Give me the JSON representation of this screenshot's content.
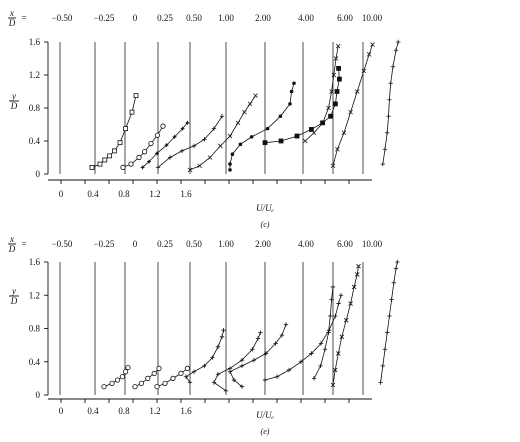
{
  "figure": {
    "top": {
      "caption": "(c)",
      "station_label_num": "x",
      "station_label_den": "D",
      "eq": "=",
      "stations": [
        "−0.50",
        "−0.25",
        "0",
        "0.25",
        "0.50",
        "1.00",
        "2.00",
        "4.00",
        "6.00",
        "10.00"
      ],
      "y_label_num": "y",
      "y_label_den": "D",
      "y_ticks": [
        "1.6",
        "1.2",
        "0.8",
        "0.4",
        "0"
      ],
      "x_ticks": [
        "0",
        "0.4",
        "0.8",
        "1.2",
        "1.6"
      ],
      "x_label": "U/Uₑ"
    },
    "bottom": {
      "caption": "(e)",
      "station_label_num": "x",
      "station_label_den": "D",
      "eq": "=",
      "stations": [
        "−0.50",
        "−0.25",
        "0",
        "0.25",
        "0.50",
        "1.00",
        "2.00",
        "4.00",
        "6.00",
        "10.00"
      ],
      "y_label_num": "y",
      "y_label_den": "D",
      "y_ticks": [
        "1.6",
        "1.2",
        "0.8",
        "0.4",
        "0"
      ],
      "x_ticks": [
        "0",
        "0.4",
        "0.8",
        "1.2",
        "1.6"
      ],
      "x_label": "U/Uₑ"
    }
  },
  "chart_data": [
    {
      "type": "line",
      "title": "",
      "xlabel": "U/Ue",
      "ylabel": "y/D",
      "ylim": [
        0,
        1.6
      ],
      "x_scale": "velocity profiles, each offset to its station baseline",
      "series": [
        {
          "name": "x/D = −0.50",
          "marker": "square",
          "points": [
            [
              0.4,
              0.08
            ],
            [
              0.5,
              0.12
            ],
            [
              0.56,
              0.17
            ],
            [
              0.62,
              0.22
            ],
            [
              0.68,
              0.28
            ],
            [
              0.75,
              0.38
            ],
            [
              0.82,
              0.55
            ],
            [
              0.9,
              0.75
            ],
            [
              0.95,
              0.95
            ]
          ]
        },
        {
          "name": "x/D = −0.25",
          "marker": "circle",
          "points": [
            [
              0.35,
              0.08
            ],
            [
              0.45,
              0.12
            ],
            [
              0.55,
              0.2
            ],
            [
              0.62,
              0.27
            ],
            [
              0.7,
              0.37
            ],
            [
              0.78,
              0.47
            ],
            [
              0.85,
              0.58
            ]
          ]
        },
        {
          "name": "x/D = 0",
          "marker": "cross",
          "points": [
            [
              0.22,
              0.08
            ],
            [
              0.3,
              0.15
            ],
            [
              0.4,
              0.25
            ],
            [
              0.52,
              0.35
            ],
            [
              0.62,
              0.45
            ],
            [
              0.72,
              0.55
            ],
            [
              0.78,
              0.62
            ]
          ]
        },
        {
          "name": "x/D = 0.25",
          "marker": "plus",
          "points": [
            [
              0.0,
              0.08
            ],
            [
              0.15,
              0.2
            ],
            [
              0.3,
              0.28
            ],
            [
              0.45,
              0.34
            ],
            [
              0.58,
              0.42
            ],
            [
              0.7,
              0.55
            ],
            [
              0.8,
              0.7
            ]
          ]
        },
        {
          "name": "x/D = 0.50",
          "marker": "x",
          "points": [
            [
              0.0,
              0.05
            ],
            [
              0.12,
              0.1
            ],
            [
              0.25,
              0.2
            ],
            [
              0.38,
              0.34
            ],
            [
              0.5,
              0.46
            ],
            [
              0.6,
              0.62
            ],
            [
              0.68,
              0.75
            ],
            [
              0.75,
              0.85
            ],
            [
              0.82,
              0.95
            ]
          ]
        },
        {
          "name": "x/D = 1.00",
          "marker": "dot",
          "points": [
            [
              0.05,
              0.05
            ],
            [
              0.05,
              0.12
            ],
            [
              0.08,
              0.24
            ],
            [
              0.18,
              0.36
            ],
            [
              0.32,
              0.45
            ],
            [
              0.52,
              0.55
            ],
            [
              0.68,
              0.7
            ],
            [
              0.8,
              0.85
            ],
            [
              0.82,
              1.0
            ],
            [
              0.85,
              1.1
            ]
          ]
        },
        {
          "name": "x/D = 2.00",
          "marker": "square-filled",
          "points": [
            [
              0.0,
              0.38
            ],
            [
              0.2,
              0.4
            ],
            [
              0.4,
              0.46
            ],
            [
              0.58,
              0.54
            ],
            [
              0.72,
              0.62
            ],
            [
              0.82,
              0.7
            ],
            [
              0.88,
              0.85
            ],
            [
              0.9,
              1.0
            ],
            [
              0.93,
              1.15
            ],
            [
              0.92,
              1.28
            ]
          ]
        },
        {
          "name": "x/D = 4.00",
          "marker": "x",
          "points": [
            [
              0.05,
              0.4
            ],
            [
              0.25,
              0.5
            ],
            [
              0.45,
              0.62
            ],
            [
              0.58,
              0.8
            ],
            [
              0.65,
              1.0
            ],
            [
              0.7,
              1.2
            ],
            [
              0.75,
              1.4
            ],
            [
              0.8,
              1.55
            ]
          ]
        },
        {
          "name": "x/D = 6.00",
          "marker": "x",
          "points": [
            [
              0.0,
              0.1
            ],
            [
              0.1,
              0.3
            ],
            [
              0.25,
              0.5
            ],
            [
              0.4,
              0.75
            ],
            [
              0.55,
              1.0
            ],
            [
              0.7,
              1.25
            ],
            [
              0.82,
              1.45
            ],
            [
              0.9,
              1.57
            ]
          ]
        },
        {
          "name": "x/D = 10.00",
          "marker": "plus",
          "points": [
            [
              0.45,
              0.12
            ],
            [
              0.5,
              0.3
            ],
            [
              0.55,
              0.5
            ],
            [
              0.58,
              0.7
            ],
            [
              0.6,
              0.9
            ],
            [
              0.63,
              1.1
            ],
            [
              0.68,
              1.3
            ],
            [
              0.75,
              1.5
            ],
            [
              0.8,
              1.6
            ]
          ]
        }
      ]
    },
    {
      "type": "line",
      "title": "",
      "xlabel": "U/Ue",
      "ylabel": "y/D",
      "ylim": [
        0,
        1.6
      ],
      "x_scale": "velocity profiles, each offset to its station baseline",
      "series": [
        {
          "name": "x/D = −0.50",
          "marker": "circle",
          "points": [
            [
              0.55,
              0.1
            ],
            [
              0.65,
              0.14
            ],
            [
              0.72,
              0.18
            ],
            [
              0.78,
              0.22
            ],
            [
              0.82,
              0.28
            ],
            [
              0.85,
              0.33
            ]
          ]
        },
        {
          "name": "x/D = −0.25",
          "marker": "circle",
          "points": [
            [
              0.5,
              0.1
            ],
            [
              0.58,
              0.14
            ],
            [
              0.66,
              0.2
            ],
            [
              0.74,
              0.26
            ],
            [
              0.8,
              0.32
            ]
          ]
        },
        {
          "name": "x/D = 0",
          "marker": "circle",
          "points": [
            [
              0.4,
              0.1
            ],
            [
              0.5,
              0.14
            ],
            [
              0.6,
              0.2
            ],
            [
              0.7,
              0.26
            ],
            [
              0.78,
              0.32
            ]
          ]
        },
        {
          "name": "x/D = 0.25",
          "marker": "plus",
          "points": [
            [
              0.4,
              0.15
            ],
            [
              0.35,
              0.22
            ],
            [
              0.45,
              0.28
            ],
            [
              0.58,
              0.35
            ],
            [
              0.68,
              0.45
            ],
            [
              0.75,
              0.58
            ],
            [
              0.8,
              0.7
            ],
            [
              0.82,
              0.78
            ]
          ]
        },
        {
          "name": "x/D = 0.50",
          "marker": "plus",
          "points": [
            [
              0.45,
              0.05
            ],
            [
              0.3,
              0.15
            ],
            [
              0.35,
              0.25
            ],
            [
              0.5,
              0.32
            ],
            [
              0.65,
              0.42
            ],
            [
              0.78,
              0.55
            ],
            [
              0.85,
              0.68
            ],
            [
              0.88,
              0.75
            ]
          ]
        },
        {
          "name": "x/D = 1.00",
          "marker": "plus",
          "points": [
            [
              0.2,
              0.1
            ],
            [
              0.1,
              0.18
            ],
            [
              0.05,
              0.28
            ],
            [
              0.2,
              0.35
            ],
            [
              0.35,
              0.42
            ],
            [
              0.5,
              0.5
            ],
            [
              0.62,
              0.62
            ],
            [
              0.7,
              0.72
            ],
            [
              0.75,
              0.85
            ]
          ]
        },
        {
          "name": "x/D = 2.00",
          "marker": "plus",
          "points": [
            [
              0.0,
              0.18
            ],
            [
              0.15,
              0.22
            ],
            [
              0.3,
              0.3
            ],
            [
              0.45,
              0.4
            ],
            [
              0.58,
              0.5
            ],
            [
              0.7,
              0.62
            ],
            [
              0.8,
              0.78
            ],
            [
              0.88,
              0.95
            ],
            [
              0.92,
              1.1
            ],
            [
              0.95,
              1.2
            ]
          ]
        },
        {
          "name": "x/D = 4.00",
          "marker": "plus",
          "points": [
            [
              0.25,
              0.2
            ],
            [
              0.4,
              0.35
            ],
            [
              0.5,
              0.55
            ],
            [
              0.58,
              0.75
            ],
            [
              0.62,
              0.95
            ],
            [
              0.65,
              1.15
            ],
            [
              0.68,
              1.3
            ]
          ]
        },
        {
          "name": "x/D = 6.00",
          "marker": "x",
          "points": [
            [
              0.0,
              0.12
            ],
            [
              0.05,
              0.3
            ],
            [
              0.12,
              0.5
            ],
            [
              0.2,
              0.7
            ],
            [
              0.3,
              0.9
            ],
            [
              0.4,
              1.1
            ],
            [
              0.48,
              1.3
            ],
            [
              0.55,
              1.45
            ],
            [
              0.58,
              1.55
            ]
          ]
        },
        {
          "name": "x/D = 10.00",
          "marker": "plus",
          "points": [
            [
              0.4,
              0.15
            ],
            [
              0.45,
              0.35
            ],
            [
              0.5,
              0.55
            ],
            [
              0.55,
              0.75
            ],
            [
              0.6,
              0.95
            ],
            [
              0.65,
              1.15
            ],
            [
              0.7,
              1.35
            ],
            [
              0.75,
              1.52
            ],
            [
              0.78,
              1.6
            ]
          ]
        }
      ]
    }
  ]
}
